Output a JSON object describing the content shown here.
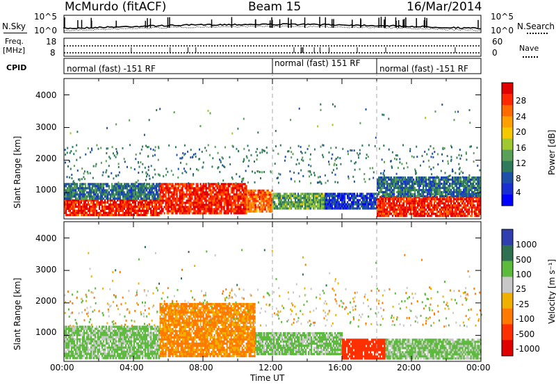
{
  "header": {
    "station": "McMurdo (fitACF)",
    "beam": "Beam 15",
    "date": "16/Mar/2014"
  },
  "nsky_panel": {
    "left_label": "N.Sky",
    "left_ticks": [
      "10^5",
      "10^0"
    ],
    "right_label": "N.Search",
    "right_ticks": [
      "10^5",
      "10^0"
    ]
  },
  "freq_panel": {
    "left_label_1": "Freq.",
    "left_label_2": "[MHz]",
    "left_ticks": [
      "18",
      "8"
    ],
    "right_label": "Nave",
    "right_ticks": [
      "60",
      "0"
    ]
  },
  "cpid_panel": {
    "label": "CPID",
    "segments": [
      "normal (fast) -151 RF",
      "normal (fast) 151 RF",
      "normal (fast) -151 RF"
    ]
  },
  "power_panel": {
    "ylabel": "Slant Range [km]",
    "cbar_label": "Power [dB]",
    "cbar_ticks": [
      "28",
      "24",
      "20",
      "16",
      "12",
      "8",
      "4"
    ],
    "cbar_colors": [
      "#e10000",
      "#ff2800",
      "#ff6a00",
      "#ff9f00",
      "#f5c800",
      "#a0c830",
      "#5aa058",
      "#2f7a5a",
      "#1e50a8",
      "#1a2fd2",
      "#0000ff"
    ]
  },
  "velocity_panel": {
    "ylabel": "Slant Range [km]",
    "cbar_label": "Velocity [m s⁻¹]",
    "cbar_ticks": [
      "1000",
      "500",
      "100",
      "25",
      "-25",
      "-100",
      "-500",
      "-1000"
    ],
    "cbar_colors": [
      "#2f3fb0",
      "#2f7050",
      "#5cba3c",
      "#c8c8c8",
      "#f0b000",
      "#ff7a00",
      "#ff3000",
      "#e00000"
    ]
  },
  "xaxis": {
    "label": "Time UT",
    "ticks": [
      "00:00",
      "04:00",
      "08:00",
      "12:00",
      "16:00",
      "20:00",
      "00:00"
    ]
  },
  "chart_data": [
    {
      "type": "heatmap",
      "title": "",
      "xlabel": "Time UT",
      "ylabel": "Slant Range [km]",
      "xlim_hours": [
        0,
        24
      ],
      "ylim": [
        200,
        4500
      ],
      "yticks": [
        1000,
        2000,
        3000,
        4000
      ],
      "colorbar": {
        "label": "Power [dB]",
        "range": [
          0,
          30
        ],
        "ticks": [
          4,
          8,
          12,
          16,
          20,
          24,
          28
        ]
      },
      "regions": [
        {
          "t": [
            0,
            5.5
          ],
          "r": [
            300,
            800
          ],
          "value": 28
        },
        {
          "t": [
            0,
            5.5
          ],
          "r": [
            800,
            1300
          ],
          "value": 8
        },
        {
          "t": [
            5.5,
            10.5
          ],
          "r": [
            350,
            1300
          ],
          "value": 28
        },
        {
          "t": [
            10.5,
            12
          ],
          "r": [
            400,
            1100
          ],
          "value": 24
        },
        {
          "t": [
            12,
            15
          ],
          "r": [
            500,
            1000
          ],
          "value": 12
        },
        {
          "t": [
            15,
            18
          ],
          "r": [
            500,
            1000
          ],
          "value": 4
        },
        {
          "t": [
            18,
            24
          ],
          "r": [
            300,
            900
          ],
          "value": 28
        },
        {
          "t": [
            18,
            24
          ],
          "r": [
            900,
            1500
          ],
          "value": 8
        }
      ],
      "dashed_time_markers": [
        12,
        18
      ]
    },
    {
      "type": "heatmap",
      "title": "",
      "xlabel": "Time UT",
      "ylabel": "Slant Range [km]",
      "xlim_hours": [
        0,
        24
      ],
      "ylim": [
        200,
        4500
      ],
      "yticks": [
        1000,
        2000,
        3000,
        4000
      ],
      "colorbar": {
        "label": "Velocity [m s⁻¹]",
        "ticks": [
          1000,
          500,
          100,
          25,
          -25,
          -100,
          -500,
          -1000
        ]
      },
      "regions": [
        {
          "t": [
            0,
            5.5
          ],
          "r": [
            300,
            1300
          ],
          "value": 100
        },
        {
          "t": [
            5.5,
            11
          ],
          "r": [
            350,
            2000
          ],
          "value": -100
        },
        {
          "t": [
            11,
            16
          ],
          "r": [
            400,
            1100
          ],
          "value": 100
        },
        {
          "t": [
            16,
            18.5
          ],
          "r": [
            300,
            900
          ],
          "value": -500
        },
        {
          "t": [
            18.5,
            24
          ],
          "r": [
            300,
            900
          ],
          "value": 100
        }
      ],
      "dashed_time_markers": [
        12,
        18
      ]
    }
  ]
}
